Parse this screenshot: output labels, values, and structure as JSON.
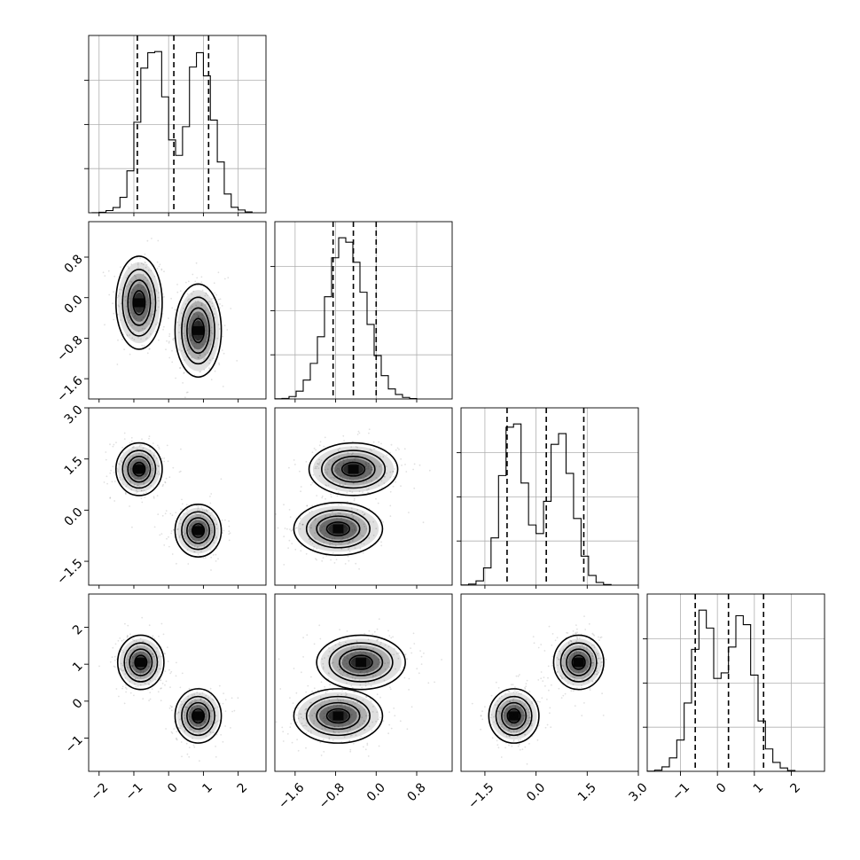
{
  "chart_data": {
    "type": "corner",
    "title": "",
    "variables": [
      {
        "range": [
          -2.3,
          2.8
        ],
        "ticks": [
          -2,
          -1,
          0,
          1,
          2
        ],
        "tick_labels": [
          "−2",
          "−1",
          "0",
          "1",
          "2"
        ],
        "modes": [
          -0.85,
          0.85
        ],
        "spread": 0.38
      },
      {
        "range": [
          -2.0,
          1.5
        ],
        "ticks": [
          -1.6,
          -0.8,
          0.0,
          0.8
        ],
        "tick_labels": [
          "−1.6",
          "−0.8",
          "0.0",
          "0.8"
        ],
        "modes": [
          -0.65
        ],
        "spread": 0.5
      },
      {
        "range": [
          -2.2,
          3.0
        ],
        "ticks": [
          -1.5,
          0.0,
          1.5,
          3.0
        ],
        "tick_labels": [
          "−1.5",
          "0.0",
          "1.5",
          "3.0"
        ],
        "modes": [
          -0.65,
          1.25
        ],
        "spread": 0.42
      },
      {
        "range": [
          -1.9,
          2.9
        ],
        "ticks": [
          -1,
          0,
          1,
          2
        ],
        "tick_labels": [
          "−1",
          "0",
          "1",
          "2"
        ],
        "modes": [
          -0.4,
          1.05
        ],
        "spread": 0.4
      }
    ],
    "quantile_lines": [
      [
        -0.9,
        0.15,
        1.15
      ],
      [
        -0.85,
        -0.45,
        0.0
      ],
      [
        -0.85,
        0.3,
        1.4
      ],
      [
        -0.6,
        0.3,
        1.25
      ]
    ],
    "histograms": [
      {
        "x0": -2.2,
        "dx": 0.2,
        "counts": [
          1,
          5,
          20,
          48,
          140,
          380,
          820,
          1310,
          1450,
          1460,
          1050,
          660,
          520,
          780,
          1320,
          1450,
          1240,
          840,
          460,
          170,
          50,
          25,
          8
        ]
      },
      {
        "x0": -2.0,
        "dx": 0.14,
        "counts": [
          2,
          5,
          22,
          70,
          170,
          320,
          560,
          920,
          1270,
          1450,
          1410,
          1230,
          960,
          670,
          390,
          210,
          90,
          40,
          14,
          4
        ]
      },
      {
        "x0": -2.2,
        "dx": 0.22,
        "counts": [
          2,
          10,
          40,
          160,
          440,
          1020,
          1470,
          1500,
          950,
          560,
          480,
          780,
          1310,
          1410,
          1040,
          620,
          270,
          90,
          25,
          6
        ]
      },
      {
        "x0": -1.9,
        "dx": 0.2,
        "counts": [
          2,
          10,
          40,
          120,
          280,
          610,
          1090,
          1440,
          1280,
          830,
          880,
          1110,
          1390,
          1310,
          860,
          450,
          200,
          80,
          30,
          8
        ]
      }
    ],
    "pairs": [
      {
        "row": 1,
        "col": 0,
        "clusters": [
          [
            -0.85,
            -0.1
          ],
          [
            0.85,
            -0.65
          ]
        ]
      },
      {
        "row": 2,
        "col": 0,
        "clusters": [
          [
            -0.85,
            1.2
          ],
          [
            0.85,
            -0.6
          ]
        ]
      },
      {
        "row": 2,
        "col": 1,
        "clusters": [
          [
            -0.75,
            -0.55
          ],
          [
            -0.45,
            1.2
          ]
        ]
      },
      {
        "row": 3,
        "col": 0,
        "clusters": [
          [
            -0.8,
            1.05
          ],
          [
            0.85,
            -0.4
          ]
        ]
      },
      {
        "row": 3,
        "col": 1,
        "clusters": [
          [
            -0.75,
            -0.4
          ],
          [
            -0.3,
            1.05
          ]
        ]
      },
      {
        "row": 3,
        "col": 2,
        "clusters": [
          [
            -0.65,
            -0.4
          ],
          [
            1.25,
            1.05
          ]
        ]
      }
    ],
    "colors": {
      "ink": "#000000",
      "grid": "#b0b0b0",
      "background": "#ffffff"
    },
    "grid": true
  }
}
